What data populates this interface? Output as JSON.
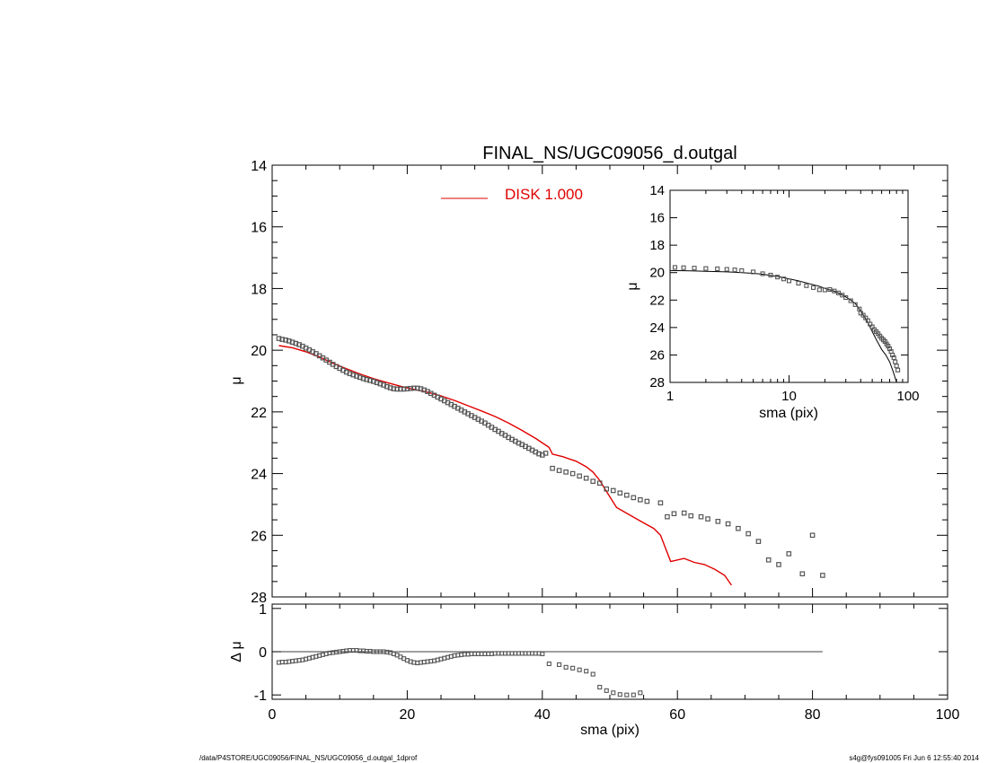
{
  "title": "FINAL_NS/UGC09056_d.outgal",
  "legend": {
    "label": "DISK  1.000",
    "color": "#e00000"
  },
  "footer": {
    "left": "/data/P4STORE/UGC09056/FINAL_NS/UGC09056_d.outgal_1dprof",
    "right": "s4g@fys091005  Fri Jun  6 12:55:40 2014"
  },
  "chart_data": [
    {
      "panel": "main",
      "type": "scatter",
      "xlabel": "sma (pix)",
      "ylabel": "μ",
      "xlim": [
        0,
        100
      ],
      "ylim": [
        28,
        14
      ],
      "y_reversed": true,
      "xticks": [
        0,
        20,
        40,
        60,
        80,
        100
      ],
      "yticks": [
        14,
        16,
        18,
        20,
        22,
        24,
        26,
        28
      ],
      "series": [
        {
          "role": "observed",
          "marker": "square",
          "color": "#555555",
          "x": [
            1,
            1.5,
            2,
            2.5,
            3,
            3.5,
            4,
            4.5,
            5,
            5.5,
            6,
            6.5,
            7,
            7.5,
            8,
            8.5,
            9,
            9.5,
            10,
            10.5,
            11,
            11.5,
            12,
            12.5,
            13,
            13.5,
            14,
            14.5,
            15,
            15.5,
            16,
            16.5,
            17,
            17.5,
            18,
            18.5,
            19,
            19.5,
            20,
            20.5,
            21,
            21.5,
            22,
            22.5,
            23,
            23.5,
            24,
            24.5,
            25,
            25.5,
            26,
            26.5,
            27,
            27.5,
            28,
            28.5,
            29,
            29.5,
            30,
            30.5,
            31,
            31.5,
            32,
            32.5,
            33,
            33.5,
            34,
            34.5,
            35,
            35.5,
            36,
            36.5,
            37,
            37.5,
            38,
            38.5,
            39,
            39.5,
            40,
            40.5,
            41.5,
            42.5,
            43.5,
            44.5,
            45.5,
            46.5,
            47.5,
            48.5,
            49.5,
            50.5,
            51.5,
            52.5,
            53.5,
            54.5,
            55.5,
            57.5,
            58.5,
            59.5,
            61,
            62,
            63.5,
            64.5,
            66,
            67.5,
            69,
            70.5,
            72,
            73.5,
            75,
            76.5,
            78.5,
            80,
            81.5
          ],
          "y": [
            19.62,
            19.65,
            19.67,
            19.7,
            19.74,
            19.78,
            19.82,
            19.87,
            19.93,
            19.99,
            20.05,
            20.11,
            20.18,
            20.25,
            20.32,
            20.39,
            20.46,
            20.53,
            20.59,
            20.65,
            20.71,
            20.76,
            20.8,
            20.84,
            20.88,
            20.92,
            20.95,
            20.98,
            21.01,
            21.05,
            21.09,
            21.13,
            21.18,
            21.22,
            21.25,
            21.26,
            21.26,
            21.26,
            21.25,
            21.24,
            21.23,
            21.23,
            21.25,
            21.29,
            21.34,
            21.4,
            21.46,
            21.52,
            21.58,
            21.64,
            21.7,
            21.76,
            21.82,
            21.88,
            21.94,
            22.0,
            22.06,
            22.12,
            22.18,
            22.24,
            22.3,
            22.36,
            22.43,
            22.5,
            22.57,
            22.63,
            22.7,
            22.76,
            22.83,
            22.89,
            22.95,
            23.01,
            23.06,
            23.12,
            23.18,
            23.24,
            23.3,
            23.36,
            23.4,
            23.34,
            23.83,
            23.9,
            23.95,
            24.0,
            24.08,
            24.15,
            24.25,
            24.31,
            24.5,
            24.55,
            24.63,
            24.7,
            24.78,
            24.85,
            24.9,
            24.95,
            25.4,
            25.3,
            25.28,
            25.37,
            25.4,
            25.47,
            25.55,
            25.63,
            25.78,
            25.95,
            26.2,
            26.8,
            26.95,
            26.6,
            27.25,
            26.0,
            27.3
          ]
        },
        {
          "role": "model",
          "name": "DISK  1.000",
          "marker": "line",
          "color": "#e00000",
          "x": [
            1,
            3,
            5,
            7,
            9,
            11,
            13,
            15,
            17,
            19,
            21,
            23,
            25,
            27,
            29,
            31,
            33,
            35,
            37,
            39,
            41,
            41.5,
            43,
            45,
            46.5,
            47.5,
            48.5,
            49.5,
            51,
            53,
            55,
            56.5,
            57.5,
            59,
            61,
            62.5,
            64,
            65.5,
            67,
            68
          ],
          "y": [
            19.85,
            19.92,
            20.05,
            20.22,
            20.42,
            20.6,
            20.77,
            20.92,
            21.05,
            21.17,
            21.27,
            21.36,
            21.48,
            21.63,
            21.8,
            21.97,
            22.15,
            22.36,
            22.6,
            22.86,
            23.15,
            23.37,
            23.45,
            23.6,
            23.78,
            23.95,
            24.22,
            24.58,
            25.1,
            25.35,
            25.6,
            25.78,
            26.0,
            26.85,
            26.75,
            26.88,
            26.95,
            27.1,
            27.3,
            27.62
          ]
        }
      ]
    },
    {
      "panel": "inset",
      "type": "scatter",
      "xlabel": "sma (pix)",
      "ylabel": "μ",
      "xscale": "log",
      "xlim": [
        1,
        100
      ],
      "ylim": [
        28,
        14
      ],
      "y_reversed": true,
      "xticks": [
        1,
        10,
        100
      ],
      "yticks": [
        14,
        16,
        18,
        20,
        22,
        24,
        26,
        28
      ],
      "series": [
        {
          "role": "observed",
          "marker": "square",
          "color": "#555555",
          "x": [
            1.1,
            1.3,
            1.6,
            2,
            2.5,
            3,
            3.5,
            4,
            5,
            6,
            7,
            8,
            9,
            10,
            12,
            14,
            16,
            18,
            20,
            22,
            24,
            26,
            28,
            30,
            33,
            36,
            39,
            40,
            42,
            44,
            46,
            48,
            50,
            52,
            54,
            56,
            58,
            60,
            62,
            64,
            66,
            68,
            70,
            72,
            74,
            76,
            78,
            80,
            82
          ],
          "y": [
            19.62,
            19.64,
            19.67,
            19.7,
            19.72,
            19.76,
            19.8,
            19.85,
            19.95,
            20.08,
            20.18,
            20.32,
            20.46,
            20.6,
            20.77,
            20.95,
            21.09,
            21.25,
            21.26,
            21.23,
            21.34,
            21.48,
            21.64,
            21.82,
            22.05,
            22.33,
            22.65,
            22.95,
            23.1,
            23.3,
            23.5,
            23.75,
            23.95,
            24.15,
            24.3,
            24.45,
            24.62,
            24.78,
            24.9,
            25.02,
            25.2,
            25.35,
            25.55,
            25.75,
            26.0,
            26.2,
            26.5,
            26.8,
            27.1
          ]
        },
        {
          "role": "model",
          "marker": "line",
          "color": "#000000",
          "x": [
            1,
            1.5,
            2,
            3,
            4,
            5,
            6,
            8,
            10,
            12,
            15,
            18,
            20,
            24,
            28,
            32,
            36,
            40,
            45,
            50,
            55,
            60,
            65,
            70,
            75,
            80
          ],
          "y": [
            19.85,
            19.87,
            19.9,
            19.95,
            20.0,
            20.05,
            20.12,
            20.28,
            20.45,
            20.6,
            20.82,
            21.0,
            21.15,
            21.35,
            21.62,
            21.92,
            22.25,
            22.8,
            23.5,
            24.3,
            25.0,
            25.6,
            26.0,
            26.5,
            27.2,
            28.0
          ]
        }
      ]
    },
    {
      "panel": "residual",
      "type": "scatter",
      "xlabel": "sma (pix)",
      "ylabel": "Δ μ",
      "xlim": [
        0,
        100
      ],
      "ylim": [
        -1.1,
        1.1
      ],
      "xticks": [
        0,
        20,
        40,
        60,
        80,
        100
      ],
      "yticks": [
        -1,
        0,
        1
      ],
      "zero_line": [
        0,
        81.5
      ],
      "series": [
        {
          "role": "residual",
          "marker": "square",
          "color": "#555555",
          "x": [
            1,
            1.5,
            2,
            2.5,
            3,
            3.5,
            4,
            4.5,
            5,
            5.5,
            6,
            6.5,
            7,
            7.5,
            8,
            8.5,
            9,
            9.5,
            10,
            10.5,
            11,
            11.5,
            12,
            12.5,
            13,
            13.5,
            14,
            14.5,
            15,
            15.5,
            16,
            16.5,
            17,
            17.5,
            18,
            18.5,
            19,
            19.5,
            20,
            20.5,
            21,
            21.5,
            22,
            22.5,
            23,
            23.5,
            24,
            24.5,
            25,
            25.5,
            26,
            26.5,
            27,
            27.5,
            28,
            28.5,
            29,
            29.5,
            30,
            30.5,
            31,
            31.5,
            32,
            32.5,
            33,
            33.5,
            34,
            34.5,
            35,
            35.5,
            36,
            36.5,
            37,
            37.5,
            38,
            38.5,
            39,
            39.5,
            40,
            41,
            42.5,
            43.5,
            44.5,
            45.5,
            46.5,
            47.5,
            48.5,
            49.5,
            50.5,
            51.5,
            52.5,
            53.5,
            54.5
          ],
          "y": [
            -0.25,
            -0.24,
            -0.24,
            -0.23,
            -0.22,
            -0.21,
            -0.2,
            -0.19,
            -0.17,
            -0.15,
            -0.13,
            -0.11,
            -0.09,
            -0.07,
            -0.05,
            -0.03,
            -0.02,
            -0.01,
            0.0,
            0.01,
            0.02,
            0.03,
            0.03,
            0.03,
            0.02,
            0.02,
            0.01,
            0.01,
            0.0,
            0.0,
            0.0,
            0.0,
            -0.01,
            -0.02,
            -0.05,
            -0.08,
            -0.12,
            -0.16,
            -0.2,
            -0.23,
            -0.25,
            -0.26,
            -0.25,
            -0.24,
            -0.23,
            -0.22,
            -0.21,
            -0.19,
            -0.17,
            -0.15,
            -0.13,
            -0.11,
            -0.09,
            -0.08,
            -0.07,
            -0.06,
            -0.06,
            -0.05,
            -0.05,
            -0.05,
            -0.05,
            -0.05,
            -0.05,
            -0.05,
            -0.04,
            -0.04,
            -0.04,
            -0.04,
            -0.04,
            -0.04,
            -0.04,
            -0.04,
            -0.04,
            -0.04,
            -0.04,
            -0.04,
            -0.04,
            -0.04,
            -0.05,
            -0.28,
            -0.3,
            -0.36,
            -0.38,
            -0.42,
            -0.45,
            -0.52,
            -0.82,
            -0.9,
            -0.95,
            -0.99,
            -1.0,
            -1.0,
            -0.95
          ]
        }
      ]
    }
  ]
}
